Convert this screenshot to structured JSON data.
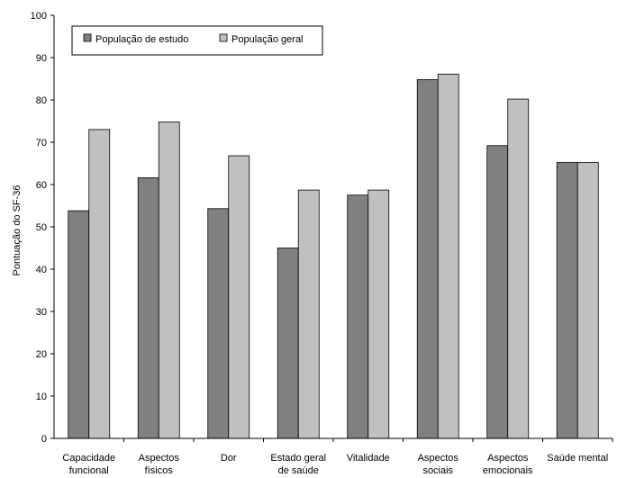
{
  "chart_data": {
    "type": "bar",
    "ylabel": "Pontuação do SF-36",
    "ylim": [
      0,
      100
    ],
    "yticks": [
      0,
      10,
      20,
      30,
      40,
      50,
      60,
      70,
      80,
      90,
      100
    ],
    "grid": false,
    "legend_position": "top-left",
    "categories": [
      [
        "Capacidade",
        "funcional"
      ],
      [
        "Aspectos",
        "físicos"
      ],
      [
        "Dor"
      ],
      [
        "Estado geral",
        "de saúde"
      ],
      [
        "Vitalidade"
      ],
      [
        "Aspectos",
        "sociais"
      ],
      [
        "Aspectos",
        "emocionais"
      ],
      [
        "Saúde mental"
      ]
    ],
    "series": [
      {
        "name": "População de estudo",
        "color": "#808080",
        "values": [
          53.8,
          61.6,
          54.3,
          45.0,
          57.5,
          84.8,
          69.2,
          65.2
        ]
      },
      {
        "name": "População geral",
        "color": "#c0c0c0",
        "values": [
          73.0,
          74.8,
          66.8,
          58.7,
          58.7,
          86.1,
          80.2,
          65.2
        ]
      }
    ]
  }
}
